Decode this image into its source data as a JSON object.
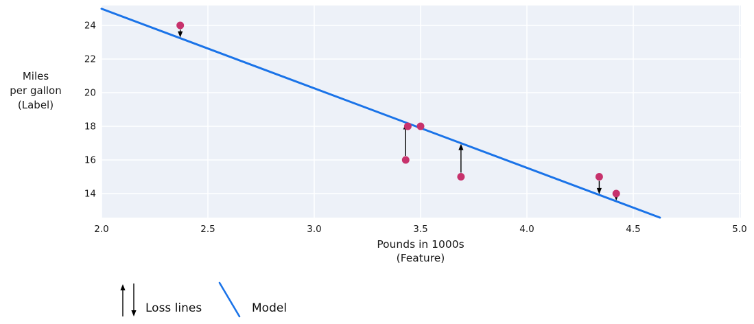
{
  "chart_data": {
    "type": "scatter",
    "title": "",
    "xlabel": "Pounds in 1000s (Feature)",
    "ylabel": "Miles per gallon (Label)",
    "xlabel_lines": [
      "Pounds in 1000s",
      "(Feature)"
    ],
    "ylabel_lines": [
      "Miles",
      "per gallon",
      "(Label)"
    ],
    "x_ticks": [
      {
        "value": 2.0,
        "label": "2.0"
      },
      {
        "value": 2.5,
        "label": "2.5"
      },
      {
        "value": 3.0,
        "label": "3.0"
      },
      {
        "value": 3.5,
        "label": "3.5"
      },
      {
        "value": 4.0,
        "label": "4.0"
      },
      {
        "value": 4.5,
        "label": "4.5"
      },
      {
        "value": 5.0,
        "label": "5.0"
      }
    ],
    "y_ticks": [
      {
        "value": 14,
        "label": "14"
      },
      {
        "value": 16,
        "label": "16"
      },
      {
        "value": 18,
        "label": "18"
      },
      {
        "value": 20,
        "label": "20"
      },
      {
        "value": 22,
        "label": "22"
      },
      {
        "value": 24,
        "label": "24"
      }
    ],
    "xlim": [
      2.0,
      5.0
    ],
    "ylim": [
      12.6,
      25.2
    ],
    "grid": true,
    "points": [
      {
        "x": 3.5,
        "y": 18
      },
      {
        "x": 3.69,
        "y": 15
      },
      {
        "x": 3.44,
        "y": 18
      },
      {
        "x": 3.43,
        "y": 16
      },
      {
        "x": 4.34,
        "y": 15
      },
      {
        "x": 4.42,
        "y": 14
      },
      {
        "x": 2.37,
        "y": 24
      }
    ],
    "model_line": {
      "slope": -4.73,
      "intercept": 34.45,
      "x_start": 2.0
    },
    "loss_arrows": [
      {
        "x": 2.37,
        "from_y": 24,
        "direction": "down"
      },
      {
        "x": 3.43,
        "from_y": 16,
        "direction": "up"
      },
      {
        "x": 3.69,
        "from_y": 15,
        "direction": "up"
      },
      {
        "x": 4.34,
        "from_y": 15,
        "direction": "down"
      },
      {
        "x": 4.42,
        "from_y": 14,
        "direction": "down"
      }
    ],
    "legend": [
      {
        "label": "Loss lines",
        "symbol": "arrows"
      },
      {
        "label": "Model",
        "symbol": "line"
      }
    ],
    "legend_position": "bottom-left",
    "colors": {
      "point": "#C7326C",
      "model_line": "#1A73E8",
      "loss_arrow": "#000000",
      "plot_background": "#EDF1F8",
      "grid": "#FFFFFF",
      "text": "#1A1A1A"
    }
  }
}
